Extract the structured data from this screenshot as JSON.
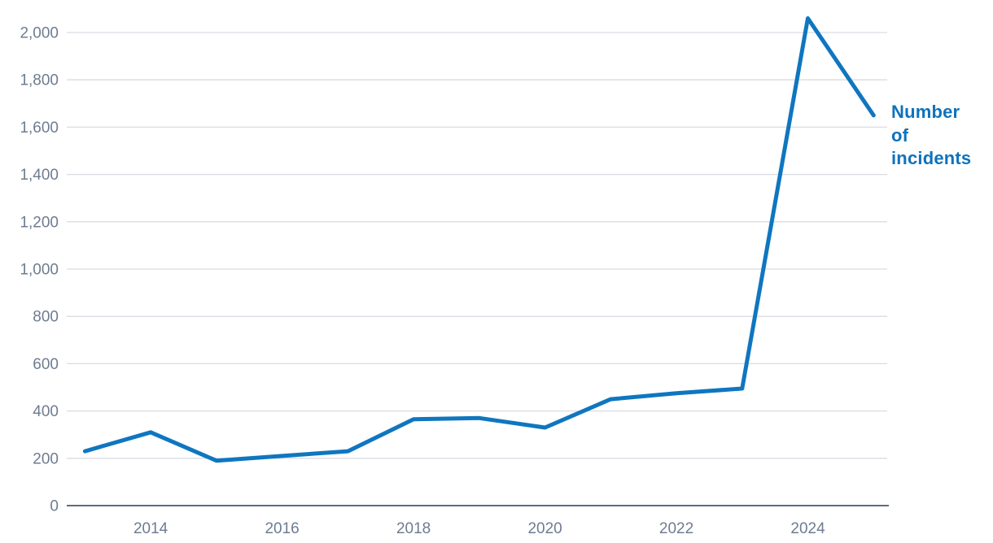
{
  "chart_data": {
    "type": "line",
    "title": "",
    "series_label": "Number of incidents",
    "x": [
      2013,
      2014,
      2015,
      2016,
      2017,
      2018,
      2019,
      2020,
      2021,
      2022,
      2023,
      2024,
      2025
    ],
    "values": [
      230,
      310,
      190,
      210,
      230,
      365,
      370,
      330,
      450,
      475,
      495,
      2060,
      1650
    ],
    "xlim": [
      2013,
      2025
    ],
    "ylim": [
      0,
      2000
    ],
    "grid": "horizontal",
    "legend_position": "right-end-of-line",
    "x_ticks": [
      {
        "year": 2014,
        "label": "2014"
      },
      {
        "year": 2016,
        "label": "2016"
      },
      {
        "year": 2018,
        "label": "2018"
      },
      {
        "year": 2020,
        "label": "2020"
      },
      {
        "year": 2022,
        "label": "2022"
      },
      {
        "year": 2024,
        "label": "2024"
      }
    ],
    "y_ticks": [
      {
        "value": 0,
        "label": "0"
      },
      {
        "value": 200,
        "label": "200"
      },
      {
        "value": 400,
        "label": "400"
      },
      {
        "value": 600,
        "label": "600"
      },
      {
        "value": 800,
        "label": "800"
      },
      {
        "value": 1000,
        "label": "1,000"
      },
      {
        "value": 1200,
        "label": "1,200"
      },
      {
        "value": 1400,
        "label": "1,400"
      },
      {
        "value": 1600,
        "label": "1,600"
      },
      {
        "value": 1800,
        "label": "1,800"
      },
      {
        "value": 2000,
        "label": "2,000"
      }
    ],
    "colors": {
      "line": "#0f76c0",
      "series_label": "#0e72bd",
      "tick_label": "#6e7c91",
      "gridline": "#d9dce3",
      "axis_line": "#5e6d80",
      "background": "#ffffff"
    }
  }
}
